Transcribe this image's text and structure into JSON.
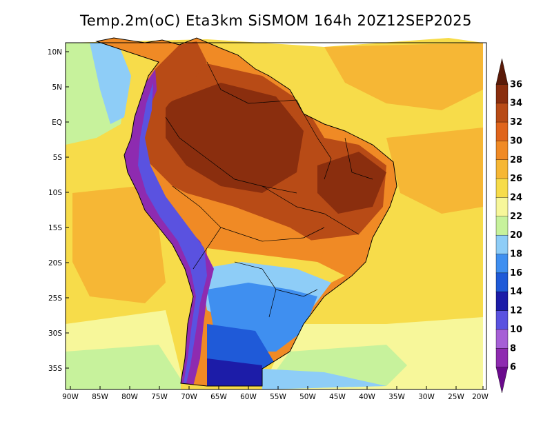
{
  "title": "Temp.2m(oC) Eta3km SiSMOM 164h 20Z12SEP2025",
  "map": {
    "variable": "2 m air temperature",
    "units": "oC",
    "region": "South America",
    "lat_labels": [
      "10N",
      "5N",
      "EQ",
      "5S",
      "10S",
      "15S",
      "20S",
      "25S",
      "30S",
      "35S"
    ],
    "lon_labels": [
      "90W",
      "85W",
      "80W",
      "75W",
      "70W",
      "65W",
      "60W",
      "55W",
      "50W",
      "45W",
      "40W",
      "35W",
      "30W",
      "25W",
      "20W"
    ]
  },
  "colorbar": {
    "levels": [
      "6",
      "8",
      "10",
      "12",
      "14",
      "16",
      "18",
      "20",
      "22",
      "24",
      "26",
      "28",
      "30",
      "32",
      "34",
      "36"
    ],
    "colors": [
      "#6a0a8c",
      "#8e2bb0",
      "#a65fd6",
      "#5a52e0",
      "#1c1ca8",
      "#1f5ad8",
      "#3f8ff0",
      "#8ecdf7",
      "#c7f29c",
      "#f7f79a",
      "#f7dc4a",
      "#f6b735",
      "#f08a25",
      "#e0651c",
      "#b84b16",
      "#8a2e0e",
      "#5a1a08"
    ]
  }
}
